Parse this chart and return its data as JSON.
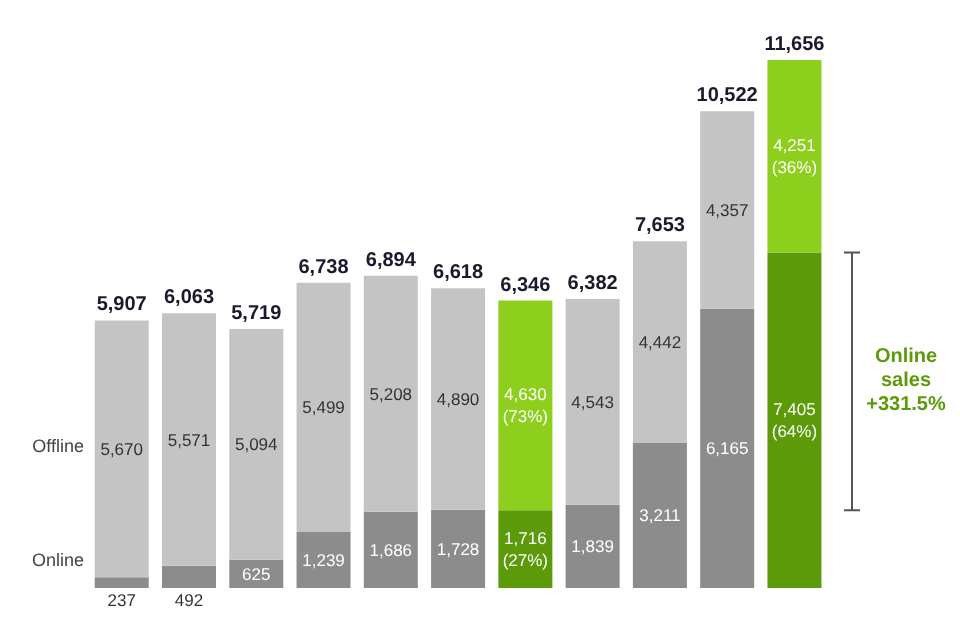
{
  "chart_data": {
    "type": "bar",
    "stacked": true,
    "categories": [
      null,
      null,
      null,
      null,
      null,
      null,
      null,
      null,
      null,
      null,
      null
    ],
    "series": [
      {
        "name": "Online",
        "color": "#8c8c8c",
        "colors": [
          "#8c8c8c",
          "#8c8c8c",
          "#8c8c8c",
          "#8c8c8c",
          "#8c8c8c",
          "#8c8c8c",
          "#5c9a0a",
          "#8c8c8c",
          "#8c8c8c",
          "#8c8c8c",
          "#5c9a0a"
        ],
        "values": [
          237,
          492,
          625,
          1239,
          1686,
          1728,
          1716,
          1839,
          3211,
          6165,
          7405
        ],
        "value_labels": [
          "237",
          "492",
          "625",
          "1,239",
          "1,686",
          "1,728",
          "1,716 (27%)",
          "1,839",
          "3,211",
          "6,165",
          "7,405 (64%)"
        ]
      },
      {
        "name": "Offline",
        "color": "#c4c4c4",
        "colors": [
          "#c4c4c4",
          "#c4c4c4",
          "#c4c4c4",
          "#c4c4c4",
          "#c4c4c4",
          "#c4c4c4",
          "#8dcf1c",
          "#c4c4c4",
          "#c4c4c4",
          "#c4c4c4",
          "#8dcf1c"
        ],
        "values": [
          5670,
          5571,
          5094,
          5499,
          5208,
          4890,
          4630,
          4543,
          4442,
          4357,
          4251
        ],
        "value_labels": [
          "5,670",
          "5,571",
          "5,094",
          "5,499",
          "5,208",
          "4,890",
          "4,630 (73%)",
          "4,543",
          "4,442",
          "4,357",
          "4,251 (36%)"
        ]
      }
    ],
    "totals": [
      "5,907",
      "6,063",
      "5,719",
      "6,738",
      "6,894",
      "6,618",
      "6,346",
      "6,382",
      "7,653",
      "10,522",
      "11,656"
    ],
    "annotations": [
      "Online sales +331.5%"
    ]
  }
}
